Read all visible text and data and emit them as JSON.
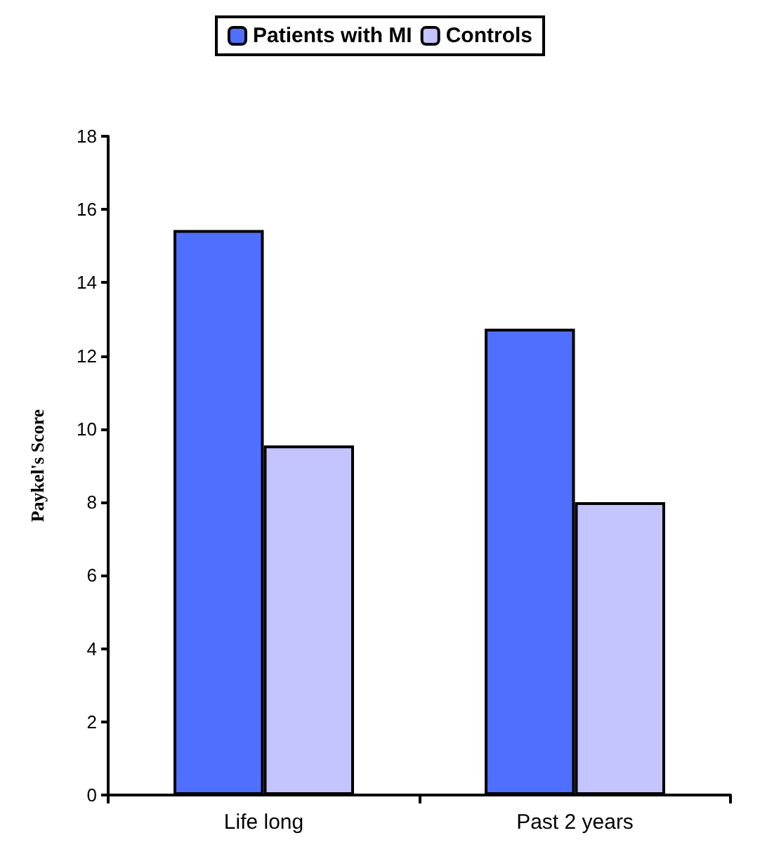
{
  "chart_data": {
    "type": "bar",
    "ylabel": "Paykel's Score",
    "categories": [
      "Life long",
      "Past 2 years"
    ],
    "series": [
      {
        "name": "Patients with MI",
        "color": "#4f6fff",
        "values": [
          15.44,
          12.74
        ]
      },
      {
        "name": "Controls",
        "color": "#c4c4ff",
        "values": [
          9.55,
          8.0
        ]
      }
    ],
    "ylim": [
      0,
      18
    ],
    "yticks": [
      0,
      2,
      4,
      6,
      8,
      10,
      12,
      14,
      16,
      18
    ],
    "grid": false,
    "legend": "top"
  }
}
